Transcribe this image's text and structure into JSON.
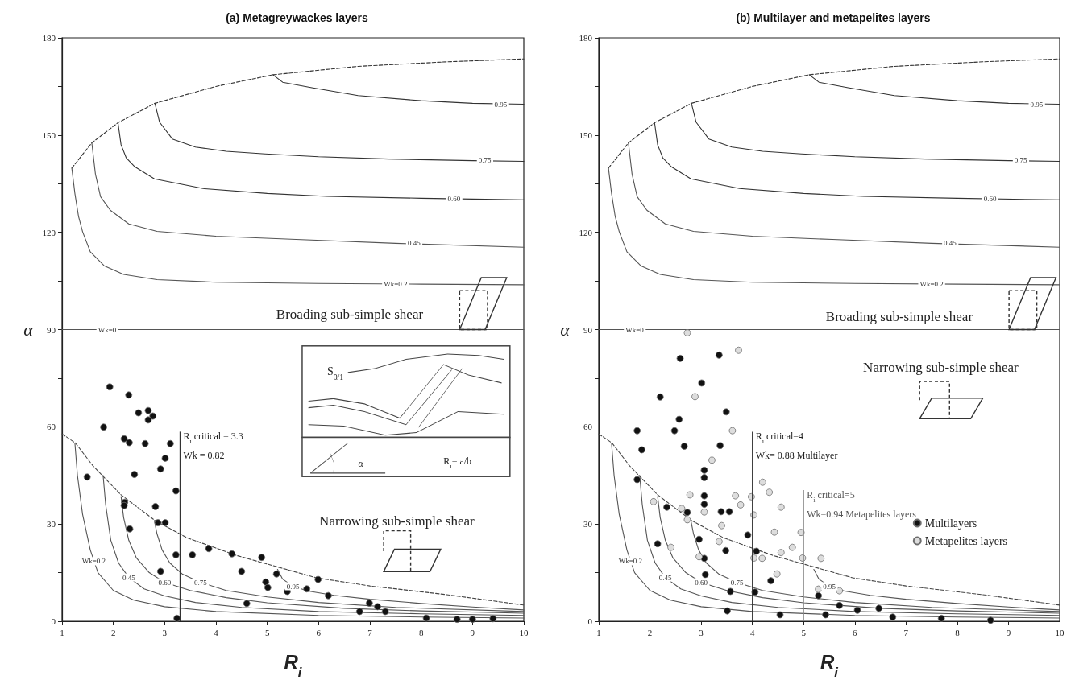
{
  "chart_data": [
    {
      "type": "scatter",
      "title": "(a) Metagreywackes layers",
      "xlabel": "R$_{i}$",
      "ylabel": "α",
      "xlim": [
        1,
        10
      ],
      "xticks": [
        1,
        2,
        3,
        4,
        5,
        6,
        7,
        8,
        9,
        10
      ],
      "ylim": [
        0,
        180
      ],
      "yticks": [
        0,
        {
          "value": 15,
          "label": null
        },
        30,
        {
          "value": 45,
          "label": null
        },
        60,
        {
          "value": 75,
          "label": null
        },
        90,
        {
          "value": 105,
          "label": null
        },
        120,
        {
          "value": 135,
          "label": null
        },
        150,
        {
          "value": 165,
          "label": null
        },
        180
      ],
      "series": [
        {
          "type": "line",
          "color": "#333333",
          "line_style": "dashed",
          "marker": "none",
          "x": [
            1.19,
            1.58,
            2.09,
            2.81,
            4,
            5.11,
            6.77,
            8.5,
            10
          ],
          "values": [
            139.8,
            147.6,
            153.8,
            159.8,
            165,
            168.6,
            171.2,
            172.6,
            173.5
          ]
        },
        {
          "type": "line",
          "color": "#333333",
          "marker": "none",
          "x": [
            5.11,
            5.3,
            5.87,
            6.77,
            8,
            9,
            10
          ],
          "values": [
            168.6,
            166.3,
            164.6,
            162.2,
            160.6,
            159.8,
            159.5
          ]
        },
        {
          "type": "line",
          "color": "#333333",
          "marker": "none",
          "x": [
            2.81,
            2.9,
            3.15,
            3.6,
            4.2,
            4.96,
            6,
            7.37,
            9,
            10
          ],
          "values": [
            159.8,
            154,
            148.8,
            146.3,
            145,
            144.2,
            143.3,
            142.6,
            142.1,
            141.9
          ]
        },
        {
          "type": "line",
          "color": "#333333",
          "marker": "none",
          "x": [
            2.09,
            2.15,
            2.25,
            2.42,
            2.8,
            3.75,
            5,
            6.17,
            8,
            10
          ],
          "values": [
            153.8,
            147,
            143,
            140.2,
            136.5,
            133.5,
            132,
            131.1,
            130.5,
            130
          ]
        },
        {
          "type": "line",
          "color": "#555555",
          "marker": "none",
          "x": [
            1.58,
            1.65,
            1.75,
            1.94,
            2.3,
            2.85,
            4,
            5.56,
            7.5,
            10
          ],
          "values": [
            147.6,
            138,
            131,
            126.8,
            122.6,
            120.3,
            118.8,
            117.8,
            116.6,
            115.4
          ]
        },
        {
          "type": "line",
          "color": "#555555",
          "marker": "none",
          "x": [
            1.19,
            1.25,
            1.32,
            1.4,
            1.55,
            1.82,
            2.2,
            2.85,
            4,
            6,
            8,
            10
          ],
          "values": [
            139.8,
            132,
            125,
            120.2,
            114,
            109.7,
            107,
            105.4,
            104.6,
            104.2,
            104,
            103.8
          ]
        },
        {
          "type": "line",
          "color": "#555555",
          "marker": "none",
          "x": [
            1,
            10
          ],
          "values": [
            90,
            90
          ]
        },
        {
          "type": "line",
          "color": "#444444",
          "line_style": "dashed",
          "marker": "none",
          "x": [
            1,
            1.26,
            1.6,
            2.15,
            2.82,
            3.43,
            4.4,
            5.96,
            7,
            8.5,
            10
          ],
          "values": [
            57.8,
            55,
            48,
            39,
            31,
            25.8,
            20.3,
            13.4,
            10.9,
            8.2,
            5
          ]
        },
        {
          "type": "line",
          "color": "#555555",
          "marker": "none",
          "x": [
            1.25,
            1.3,
            1.4,
            1.55,
            1.7,
            2,
            2.4,
            3,
            4,
            6,
            8,
            10
          ],
          "values": [
            55,
            45,
            33,
            22,
            15,
            9.5,
            6.5,
            4.5,
            3,
            1.8,
            1.3,
            1
          ]
        },
        {
          "type": "line",
          "color": "#555555",
          "marker": "none",
          "x": [
            1.8,
            1.85,
            1.95,
            2.1,
            2.3,
            2.6,
            3,
            3.6,
            4.5,
            6,
            8,
            10
          ],
          "values": [
            45,
            36,
            25,
            18,
            13.5,
            10,
            7.8,
            5.8,
            4.3,
            3,
            2.3,
            1.8
          ]
        },
        {
          "type": "line",
          "color": "#555555",
          "marker": "none",
          "x": [
            2.15,
            2.2,
            2.3,
            2.45,
            2.7,
            3,
            3.5,
            4.2,
            5,
            6.5,
            8,
            10
          ],
          "values": [
            38.5,
            32,
            25,
            19.5,
            15,
            12,
            9.5,
            7.3,
            5.7,
            4,
            3.2,
            2.5
          ]
        },
        {
          "type": "line",
          "color": "#555555",
          "marker": "none",
          "x": [
            2.8,
            2.85,
            2.95,
            3.1,
            3.35,
            3.7,
            4.2,
            5,
            6,
            7.5,
            10
          ],
          "values": [
            31,
            27,
            22,
            18,
            14.5,
            12,
            9.5,
            7.5,
            5.8,
            4.3,
            3
          ]
        },
        {
          "type": "line",
          "color": "#555555",
          "marker": "none",
          "x": [
            5.2,
            5.3,
            5.5,
            5.8,
            6.3,
            7,
            8,
            9,
            10
          ],
          "values": [
            16,
            13,
            10.8,
            9.3,
            8,
            6.8,
            5.5,
            4.4,
            3.5
          ]
        },
        {
          "type": "scatter",
          "color": "#111111",
          "marker": "circle",
          "x": [
            1.93,
            2.3,
            2.49,
            2.68,
            2.77,
            2.68,
            1.81,
            2.21,
            2.31,
            2.62,
            3.11,
            3.01,
            2.92,
            2.41,
            1.49,
            3.22,
            2.22,
            2.21,
            2.82,
            2.87,
            3.01,
            2.32,
            3.22,
            3.54,
            3.86,
            4.31,
            4.89,
            4.5,
            2.92,
            5.18,
            4.97,
            5.01,
            5.39,
            5.77,
            5.99,
            6.19,
            4.6,
            3.24,
            6.8,
            6.99,
            7.15,
            7.3,
            8.1,
            8.7,
            9,
            9.4
          ],
          "values": [
            72.3,
            69.8,
            64.3,
            65,
            63.3,
            62.1,
            59.9,
            56.3,
            55.1,
            54.8,
            54.8,
            50.3,
            47,
            45.3,
            44.5,
            40.2,
            36.7,
            35.7,
            35.4,
            30.4,
            30.4,
            28.5,
            20.5,
            20.5,
            22.4,
            20.8,
            19.7,
            15.4,
            15.4,
            14.6,
            12.1,
            10.4,
            9.2,
            10,
            12.9,
            7.9,
            5.5,
            0.9,
            3,
            5.6,
            4.5,
            3,
            1,
            0.6,
            0.6,
            0.8
          ]
        }
      ],
      "ref_lines": [
        {
          "axis": "x",
          "value": 3.3,
          "label": "R$_{i}$ critical = 3.3\nWk = 0.82",
          "color": "#333333"
        }
      ],
      "annotations": [
        {
          "text": "0.95",
          "x": 9.55,
          "y": 159.5
        },
        {
          "text": "0.75",
          "x": 9.24,
          "y": 142.3
        },
        {
          "text": "0.60",
          "x": 8.64,
          "y": 130.4
        },
        {
          "text": "0.45",
          "x": 7.86,
          "y": 116.6
        },
        {
          "text": "Wk=0.2",
          "x": 7.5,
          "y": 104.1
        },
        {
          "text": "Wk=0",
          "x": 1.88,
          "y": 90
        },
        {
          "text": "Wk=0.2",
          "x": 1.62,
          "y": 18.5
        },
        {
          "text": "0.45",
          "x": 2.3,
          "y": 13.5
        },
        {
          "text": "0.60",
          "x": 3,
          "y": 12
        },
        {
          "text": "0.75",
          "x": 3.7,
          "y": 12
        },
        {
          "text": "0.95",
          "x": 5.5,
          "y": 10.8
        },
        "Broading sub-simple shear",
        "Narrowing sub-simple shear",
        "S$_{0/1}$",
        "α",
        "R$_{i}$= a/b"
      ]
    },
    {
      "type": "scatter",
      "title": "(b) Multilayer and metapelites layers",
      "xlabel": "R$_{i}$",
      "ylabel": "α",
      "xlim": [
        1,
        10
      ],
      "xticks": [
        1,
        2,
        3,
        4,
        5,
        6,
        7,
        8,
        9,
        10
      ],
      "ylim": [
        0,
        180
      ],
      "yticks": [
        0,
        {
          "value": 15,
          "label": null
        },
        30,
        {
          "value": 45,
          "label": null
        },
        60,
        {
          "value": 75,
          "label": null
        },
        90,
        {
          "value": 105,
          "label": null
        },
        120,
        {
          "value": 135,
          "label": null
        },
        150,
        {
          "value": 165,
          "label": null
        },
        180
      ],
      "legend": "bottom right",
      "series": [
        {
          "type": "line",
          "color": "#333333",
          "line_style": "dashed",
          "marker": "none",
          "x": [
            1.19,
            1.58,
            2.09,
            2.81,
            4,
            5.11,
            6.77,
            8.5,
            10
          ],
          "values": [
            139.8,
            147.6,
            153.8,
            159.8,
            165,
            168.6,
            171.2,
            172.6,
            173.5
          ]
        },
        {
          "type": "line",
          "color": "#333333",
          "marker": "none",
          "x": [
            5.11,
            5.3,
            5.87,
            6.77,
            8,
            9,
            10
          ],
          "values": [
            168.6,
            166.3,
            164.6,
            162.2,
            160.6,
            159.8,
            159.5
          ]
        },
        {
          "type": "line",
          "color": "#333333",
          "marker": "none",
          "x": [
            2.81,
            2.9,
            3.15,
            3.6,
            4.2,
            4.96,
            6,
            7.37,
            9,
            10
          ],
          "values": [
            159.8,
            154,
            148.8,
            146.3,
            145,
            144.2,
            143.3,
            142.6,
            142.1,
            141.9
          ]
        },
        {
          "type": "line",
          "color": "#333333",
          "marker": "none",
          "x": [
            2.09,
            2.15,
            2.25,
            2.42,
            2.8,
            3.75,
            5,
            6.17,
            8,
            10
          ],
          "values": [
            153.8,
            147,
            143,
            140.2,
            136.5,
            133.5,
            132,
            131.1,
            130.5,
            130
          ]
        },
        {
          "type": "line",
          "color": "#555555",
          "marker": "none",
          "x": [
            1.58,
            1.65,
            1.75,
            1.94,
            2.3,
            2.85,
            4,
            5.56,
            7.5,
            10
          ],
          "values": [
            147.6,
            138,
            131,
            126.8,
            122.6,
            120.3,
            118.8,
            117.8,
            116.6,
            115.4
          ]
        },
        {
          "type": "line",
          "color": "#555555",
          "marker": "none",
          "x": [
            1.19,
            1.25,
            1.32,
            1.4,
            1.55,
            1.82,
            2.2,
            2.85,
            4,
            6,
            8,
            10
          ],
          "values": [
            139.8,
            132,
            125,
            120.2,
            114,
            109.7,
            107,
            105.4,
            104.6,
            104.2,
            104,
            103.8
          ]
        },
        {
          "type": "line",
          "color": "#555555",
          "marker": "none",
          "x": [
            1,
            10
          ],
          "values": [
            90,
            90
          ]
        },
        {
          "type": "line",
          "color": "#444444",
          "line_style": "dashed",
          "marker": "none",
          "x": [
            1,
            1.26,
            1.6,
            2.15,
            2.82,
            3.43,
            4.4,
            5.96,
            7,
            8.5,
            10
          ],
          "values": [
            57.8,
            55,
            48,
            39,
            31,
            25.8,
            20.3,
            13.4,
            10.9,
            8.2,
            5
          ]
        },
        {
          "type": "line",
          "color": "#555555",
          "marker": "none",
          "x": [
            1.25,
            1.3,
            1.4,
            1.55,
            1.7,
            2,
            2.4,
            3,
            4,
            6,
            8,
            10
          ],
          "values": [
            55,
            45,
            33,
            22,
            15,
            9.5,
            6.5,
            4.5,
            3,
            1.8,
            1.3,
            1
          ]
        },
        {
          "type": "line",
          "color": "#555555",
          "marker": "none",
          "x": [
            1.8,
            1.85,
            1.95,
            2.1,
            2.3,
            2.6,
            3,
            3.6,
            4.5,
            6,
            8,
            10
          ],
          "values": [
            45,
            36,
            25,
            18,
            13.5,
            10,
            7.8,
            5.8,
            4.3,
            3,
            2.3,
            1.8
          ]
        },
        {
          "type": "line",
          "color": "#555555",
          "marker": "none",
          "x": [
            2.15,
            2.2,
            2.3,
            2.45,
            2.7,
            3,
            3.5,
            4.2,
            5,
            6.5,
            8,
            10
          ],
          "values": [
            38.5,
            32,
            25,
            19.5,
            15,
            12,
            9.5,
            7.3,
            5.7,
            4,
            3.2,
            2.5
          ]
        },
        {
          "type": "line",
          "color": "#555555",
          "marker": "none",
          "x": [
            2.8,
            2.85,
            2.95,
            3.1,
            3.35,
            3.7,
            4.2,
            5,
            6,
            7.5,
            10
          ],
          "values": [
            31,
            27,
            22,
            18,
            14.5,
            12,
            9.5,
            7.5,
            5.8,
            4.3,
            3
          ]
        },
        {
          "type": "line",
          "color": "#555555",
          "marker": "none",
          "x": [
            5.2,
            5.3,
            5.5,
            5.8,
            6.3,
            7,
            8,
            9,
            10
          ],
          "values": [
            16,
            13,
            10.8,
            9.3,
            8,
            6.8,
            5.5,
            4.4,
            3.5
          ]
        },
        {
          "type": "scatter",
          "name": "Multilayers",
          "color": "#111111",
          "marker": "circle",
          "x": [
            2.59,
            3.35,
            3.01,
            2.2,
            3.49,
            2.57,
            1.75,
            2.48,
            1.84,
            2.67,
            3.37,
            3.06,
            3.06,
            1.75,
            3.06,
            3.06,
            2.33,
            2.73,
            3.39,
            3.55,
            3.91,
            2.96,
            3.48,
            4.08,
            3.06,
            2.15,
            3.08,
            4.36,
            3.57,
            4.05,
            5.29,
            3.51,
            4.54,
            5.43,
            5.7,
            6.05,
            6.47,
            6.74,
            7.69,
            8.65
          ],
          "values": [
            81.1,
            82.1,
            73.5,
            69.2,
            64.6,
            62.3,
            58.8,
            58.8,
            52.9,
            54,
            54.2,
            46.6,
            44.3,
            43.7,
            38.7,
            36.1,
            35.2,
            33.6,
            33.8,
            33.8,
            26.6,
            25.3,
            21.8,
            21.6,
            19.4,
            23.9,
            14.4,
            12.5,
            9.2,
            9,
            7.9,
            3.2,
            2,
            2,
            4.9,
            3.4,
            4,
            1.3,
            0.9,
            0.3
          ]
        },
        {
          "type": "scatter",
          "name": "Metapelites layers",
          "color": "#dddddd",
          "marker": "circle",
          "x": [
            2.73,
            3.73,
            2.88,
            3.61,
            3.21,
            4.2,
            4.33,
            4.56,
            3.67,
            3.77,
            3.98,
            4.03,
            2.78,
            2.07,
            2.62,
            2.73,
            3.06,
            3.4,
            3.35,
            2.41,
            2.96,
            4.03,
            4.19,
            4.43,
            4.56,
            4.78,
            4.95,
            4.98,
            5.34,
            4.48,
            5.29,
            5.7
          ],
          "values": [
            89,
            83.6,
            69.3,
            58.8,
            49.7,
            42.9,
            39.8,
            35.2,
            38.7,
            35.9,
            38.4,
            32.8,
            39,
            36.9,
            34.8,
            31.3,
            33.7,
            29.5,
            24.6,
            22.8,
            19.9,
            19.5,
            19.4,
            27.5,
            21.2,
            22.8,
            27.4,
            19.5,
            19.4,
            14.6,
            9.9,
            9.4
          ]
        }
      ],
      "ref_lines": [
        {
          "axis": "x",
          "value": 4,
          "label": "R$_{i}$ critical=4\nWk= 0.88  Multilayer",
          "color": "#333333"
        },
        {
          "axis": "x",
          "value": 5,
          "label": "R$_{i}$ critical=5\nWk=0.94 Metapelites layers",
          "color": "#888888"
        }
      ],
      "annotations": [
        {
          "text": "0.95",
          "x": 9.55,
          "y": 159.5
        },
        {
          "text": "0.75",
          "x": 9.24,
          "y": 142.3
        },
        {
          "text": "0.60",
          "x": 8.64,
          "y": 130.4
        },
        {
          "text": "0.45",
          "x": 7.86,
          "y": 116.6
        },
        {
          "text": "Wk=0.2",
          "x": 7.5,
          "y": 104.1
        },
        {
          "text": "Wk=0",
          "x": 1.7,
          "y": 90
        },
        {
          "text": "Wk=0.2",
          "x": 1.62,
          "y": 18.5
        },
        {
          "text": "0.45",
          "x": 2.3,
          "y": 13.5
        },
        {
          "text": "0.60",
          "x": 3,
          "y": 12
        },
        {
          "text": "0.75",
          "x": 3.7,
          "y": 12
        },
        {
          "text": "0.95",
          "x": 5.5,
          "y": 10.8
        },
        "Broading sub-simple shear",
        "Narrowing sub-simple shear"
      ]
    }
  ]
}
